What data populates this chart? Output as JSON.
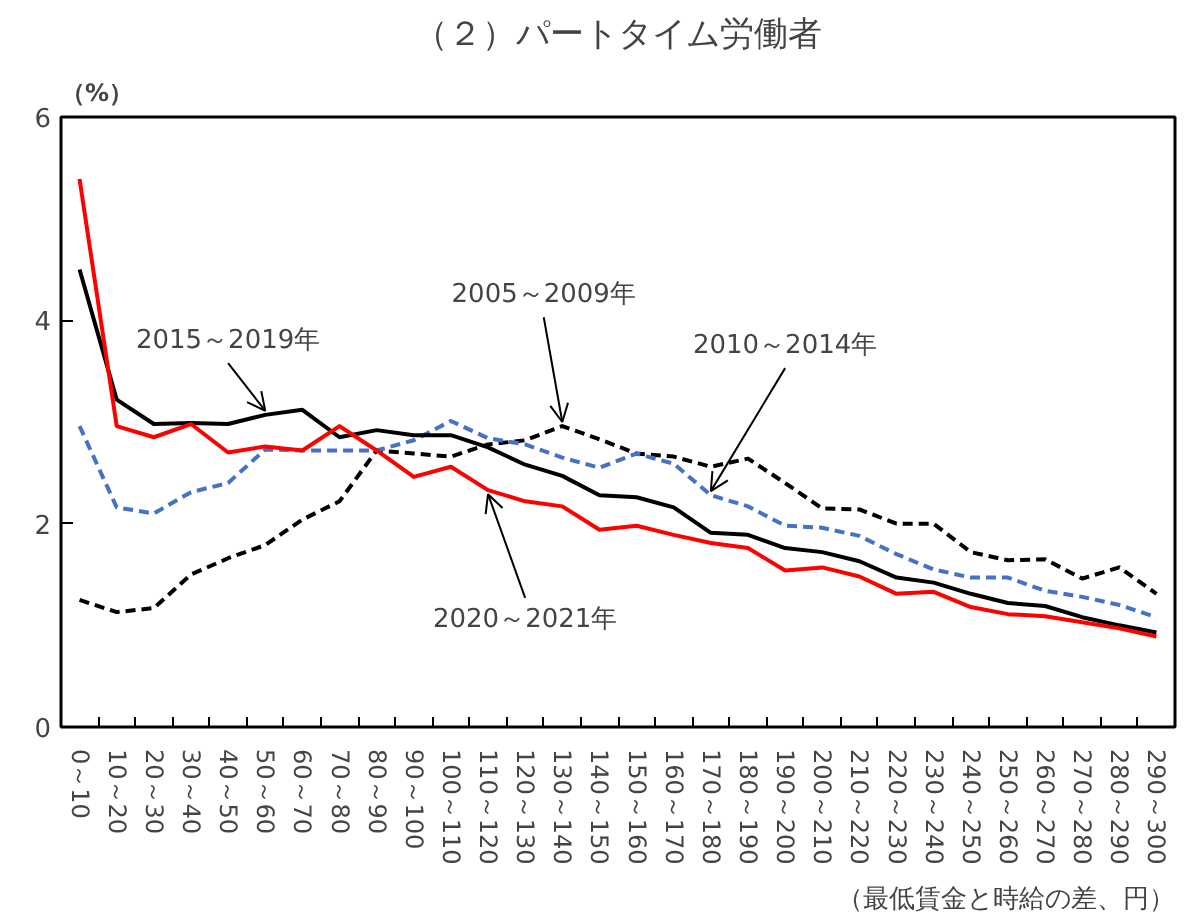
{
  "chart_data": {
    "type": "line",
    "title": "（２）パートタイム労働者",
    "ylabel": "（%）",
    "xlabel": "（最低賃金と時給の差、円）",
    "categories": [
      "0～10",
      "10～20",
      "20～30",
      "30～40",
      "40～50",
      "50～60",
      "60～70",
      "70～80",
      "80～90",
      "90～100",
      "100～110",
      "110～120",
      "120～130",
      "130～140",
      "140～150",
      "150～160",
      "160～170",
      "170～180",
      "180～190",
      "190～200",
      "200～210",
      "210～220",
      "220～230",
      "230～240",
      "240～250",
      "250～260",
      "260～270",
      "270～280",
      "280～290",
      "290～300"
    ],
    "ylim": [
      0,
      6
    ],
    "yticks": [
      0,
      2,
      4,
      6
    ],
    "grid": false,
    "marker": "none",
    "series": [
      {
        "name": "2005～2009年",
        "color": "#000000",
        "line_style": "dashed",
        "values": [
          1.25,
          1.13,
          1.17,
          1.5,
          1.66,
          1.79,
          2.04,
          2.22,
          2.72,
          2.69,
          2.66,
          2.78,
          2.82,
          2.96,
          2.83,
          2.69,
          2.66,
          2.56,
          2.64,
          2.4,
          2.15,
          2.14,
          2.0,
          2.0,
          1.72,
          1.64,
          1.65,
          1.46,
          1.57,
          1.31
        ]
      },
      {
        "name": "2010～2014年",
        "color": "#4472c4",
        "line_style": "dashed",
        "values": [
          2.96,
          2.16,
          2.1,
          2.31,
          2.4,
          2.73,
          2.72,
          2.72,
          2.72,
          2.82,
          3.01,
          2.84,
          2.78,
          2.65,
          2.55,
          2.69,
          2.59,
          2.28,
          2.17,
          1.98,
          1.96,
          1.88,
          1.7,
          1.55,
          1.47,
          1.47,
          1.34,
          1.28,
          1.2,
          1.08
        ]
      },
      {
        "name": "2015～2019年",
        "color": "#000000",
        "line_style": "solid",
        "values": [
          4.5,
          3.22,
          2.98,
          2.99,
          2.98,
          3.07,
          3.12,
          2.85,
          2.92,
          2.87,
          2.87,
          2.75,
          2.58,
          2.47,
          2.28,
          2.26,
          2.16,
          1.91,
          1.89,
          1.76,
          1.72,
          1.63,
          1.47,
          1.42,
          1.31,
          1.22,
          1.19,
          1.08,
          1.0,
          0.93
        ]
      },
      {
        "name": "2020～2021年",
        "color": "#ff0000",
        "line_style": "solid",
        "values": [
          5.39,
          2.96,
          2.85,
          2.98,
          2.7,
          2.76,
          2.72,
          2.96,
          2.72,
          2.46,
          2.56,
          2.33,
          2.22,
          2.17,
          1.94,
          1.98,
          1.89,
          1.81,
          1.76,
          1.54,
          1.57,
          1.48,
          1.31,
          1.33,
          1.18,
          1.11,
          1.09,
          1.03,
          0.97,
          0.89
        ]
      }
    ]
  }
}
